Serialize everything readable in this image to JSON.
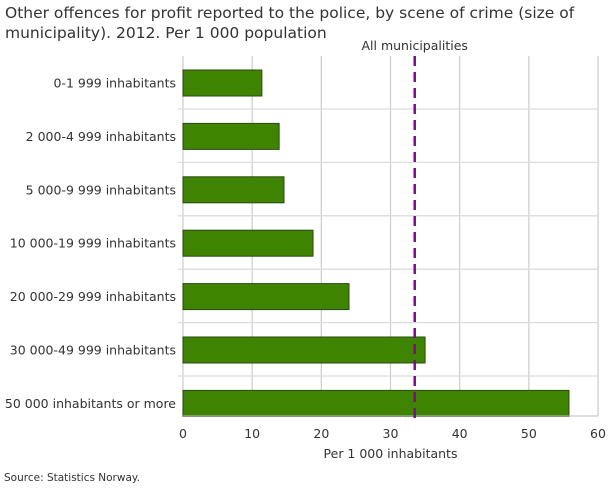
{
  "chart_data": {
    "type": "bar",
    "orientation": "horizontal",
    "title": "Other offences for profit reported to the police, by scene of crime (size of municipality). 2012. Per 1 000 population",
    "categories": [
      "0-1 999 inhabitants",
      "2 000-4 999 inhabitants",
      "5 000-9 999 inhabitants",
      "10 000-19 999 inhabitants",
      "20 000-29 999 inhabitants",
      "30 000-49 999 inhabitants",
      "50 000 inhabitants or more"
    ],
    "values": [
      11.4,
      13.9,
      14.6,
      18.8,
      24.0,
      35.0,
      55.8
    ],
    "xlabel": "Per 1 000 inhabitants",
    "ylabel": "",
    "xlim": [
      0,
      60
    ],
    "xticks": [
      "0",
      "10",
      "20",
      "30",
      "40",
      "50",
      "60"
    ],
    "grid": true,
    "reference_line": {
      "label": "All municipalities",
      "value": 33.5,
      "color": "#7b0d8c",
      "style": "dashed"
    },
    "bar_color": "#3e8400"
  },
  "source": "Source: Statistics Norway."
}
